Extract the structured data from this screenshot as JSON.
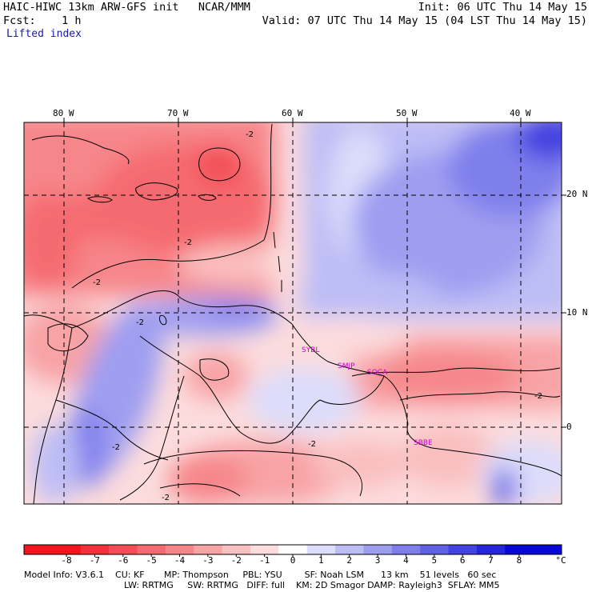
{
  "header": {
    "model_line": "HAIC-HIWC 13km ARW-GFS init   NCAR/MMM",
    "init_line": "Init: 06 UTC Thu 14 May 15",
    "fcst_line": "Fcst:    1 h",
    "valid_line": "Valid: 07 UTC Thu 14 May 15 (04 LST Thu 14 May 15)",
    "field_line": "Lifted index"
  },
  "map": {
    "lon_labels": [
      "80 W",
      "70 W",
      "60 W",
      "50 W",
      "40 W"
    ],
    "lat_labels": [
      "20 N",
      "10 N",
      "0"
    ],
    "contour_labels": [
      "-2",
      "-2",
      "-2",
      "-2",
      "-2",
      "-2",
      "-2",
      "-2"
    ],
    "stations": [
      "SYBL",
      "SMJP",
      "SOCA",
      "SBBE"
    ],
    "station_color": "#cc00cc"
  },
  "colorbar": {
    "labels": [
      "-8",
      "-7",
      "-6",
      "-5",
      "-4",
      "-3",
      "-2",
      "-1",
      "0",
      "1",
      "2",
      "3",
      "4",
      "5",
      "6",
      "7",
      "8"
    ],
    "unit": "°C",
    "colors": [
      "#f2161b",
      "#f2313a",
      "#f34e55",
      "#f56a70",
      "#f6868a",
      "#f8a3a5",
      "#fabfc0",
      "#fcdcdd",
      "#ffffff",
      "#dcdcfb",
      "#bdbdf6",
      "#9e9ef1",
      "#7f7fec",
      "#6161e6",
      "#4343e0",
      "#2525da",
      "#0808d4"
    ]
  },
  "model_info": {
    "line1": "Model Info: V3.6.1    CU: KF       MP: Thompson     PBL: YSU        SF: Noah LSM      13 km    51 levels   60 sec",
    "line2": "LW: RRTMG     SW: RRTMG   DIFF: full    KM: 2D Smagor DAMP: Rayleigh3  SFLAY: MM5"
  }
}
